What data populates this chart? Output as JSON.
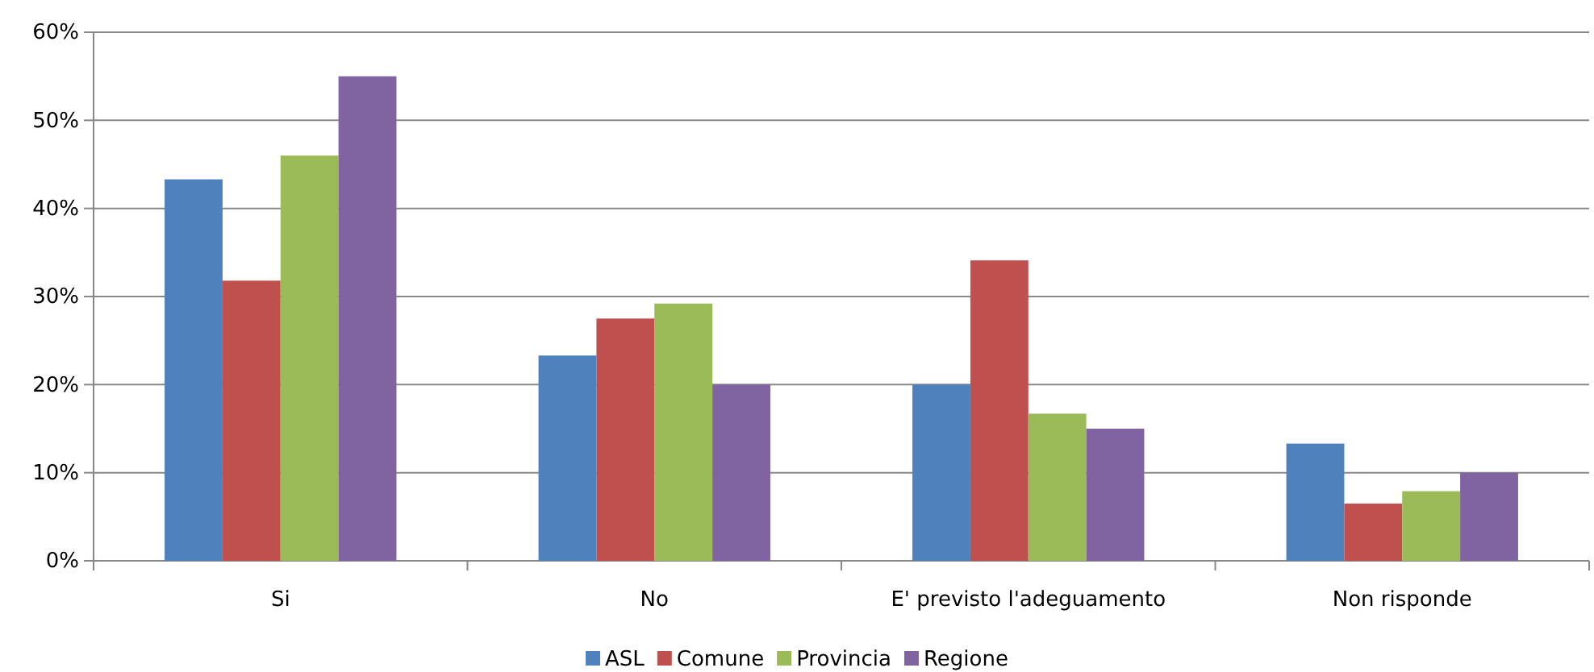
{
  "chart_data": {
    "type": "bar",
    "categories": [
      "Si",
      "No",
      "E' previsto l'adeguamento",
      "Non risponde"
    ],
    "series": [
      {
        "name": "ASL",
        "color": "#4f81bd",
        "values": [
          0.433,
          0.233,
          0.2,
          0.133
        ]
      },
      {
        "name": "Comune",
        "color": "#c0504d",
        "values": [
          0.318,
          0.275,
          0.341,
          0.065
        ]
      },
      {
        "name": "Provincia",
        "color": "#9bbb59",
        "values": [
          0.46,
          0.292,
          0.167,
          0.079
        ]
      },
      {
        "name": "Regione",
        "color": "#8064a2",
        "values": [
          0.55,
          0.2,
          0.15,
          0.1
        ]
      }
    ],
    "ylim": [
      0,
      0.6
    ],
    "yticks": [
      {
        "value": 0,
        "label": "0%"
      },
      {
        "value": 0.1,
        "label": "10%"
      },
      {
        "value": 0.2,
        "label": "20%"
      },
      {
        "value": 0.3,
        "label": "30%"
      },
      {
        "value": 0.4,
        "label": "40%"
      },
      {
        "value": 0.5,
        "label": "50%"
      },
      {
        "value": 0.6,
        "label": "60%"
      }
    ],
    "grid": "y",
    "legend": "bottom"
  }
}
